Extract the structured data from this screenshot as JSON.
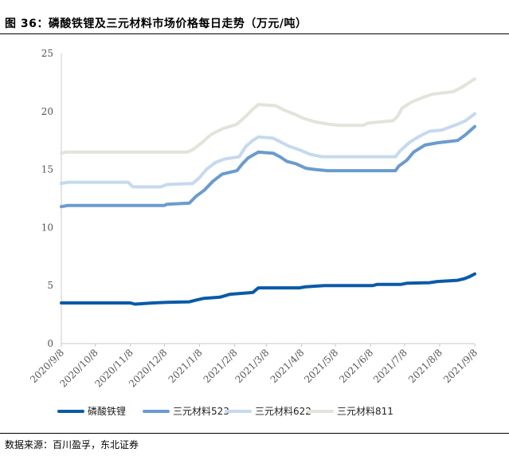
{
  "figure": {
    "title": "图 36：磷酸铁锂及三元材料市场价格每日走势（万元/吨）",
    "source": "数据来源：百川盈孚，东北证券"
  },
  "chart_data": {
    "type": "line",
    "title": "图 36：磷酸铁锂及三元材料市场价格每日走势（万元/吨）",
    "unit": "万元/吨",
    "xlabel": "",
    "ylabel": "",
    "ylim": [
      0,
      25
    ],
    "yticks": [
      0,
      5,
      10,
      15,
      20,
      25
    ],
    "x_tick_labels": [
      "2020/9/8",
      "2020/10/8",
      "2020/11/8",
      "2020/12/8",
      "2021/1/8",
      "2021/2/8",
      "2021/3/8",
      "2021/4/8",
      "2021/5/8",
      "2021/6/8",
      "2021/7/8",
      "2021/8/8",
      "2021/9/8"
    ],
    "x_start": "2020/9/8",
    "x_end": "2021/9/8",
    "grid": false,
    "legend_position": "bottom",
    "series": [
      {
        "name": "磷酸铁锂",
        "color": "#0b5aa8",
        "points": [
          [
            "2020/9/8",
            3.5
          ],
          [
            "2020/11/8",
            3.5
          ],
          [
            "2020/11/12",
            3.4
          ],
          [
            "2020/11/28",
            3.5
          ],
          [
            "2020/12/10",
            3.55
          ],
          [
            "2020/12/30",
            3.6
          ],
          [
            "2021/1/5",
            3.75
          ],
          [
            "2021/1/12",
            3.9
          ],
          [
            "2021/1/26",
            4.0
          ],
          [
            "2021/2/4",
            4.25
          ],
          [
            "2021/2/24",
            4.4
          ],
          [
            "2021/3/1",
            4.8
          ],
          [
            "2021/4/6",
            4.8
          ],
          [
            "2021/4/12",
            4.9
          ],
          [
            "2021/4/28",
            5.0
          ],
          [
            "2021/6/10",
            5.0
          ],
          [
            "2021/6/14",
            5.1
          ],
          [
            "2021/7/5",
            5.1
          ],
          [
            "2021/7/10",
            5.2
          ],
          [
            "2021/7/30",
            5.25
          ],
          [
            "2021/8/6",
            5.35
          ],
          [
            "2021/8/24",
            5.45
          ],
          [
            "2021/8/30",
            5.6
          ],
          [
            "2021/9/3",
            5.75
          ],
          [
            "2021/9/8",
            6.0
          ]
        ]
      },
      {
        "name": "三元材料523",
        "color": "#6a9bcf",
        "points": [
          [
            "2020/9/8",
            11.8
          ],
          [
            "2020/9/14",
            11.9
          ],
          [
            "2020/12/8",
            11.9
          ],
          [
            "2020/12/10",
            12.0
          ],
          [
            "2020/12/30",
            12.1
          ],
          [
            "2021/1/5",
            12.7
          ],
          [
            "2021/1/12",
            13.2
          ],
          [
            "2021/1/20",
            14.0
          ],
          [
            "2021/1/28",
            14.6
          ],
          [
            "2021/2/10",
            14.9
          ],
          [
            "2021/2/15",
            15.5
          ],
          [
            "2021/2/20",
            16.0
          ],
          [
            "2021/3/1",
            16.5
          ],
          [
            "2021/3/14",
            16.4
          ],
          [
            "2021/3/20",
            16.1
          ],
          [
            "2021/3/26",
            15.7
          ],
          [
            "2021/4/3",
            15.5
          ],
          [
            "2021/4/12",
            15.1
          ],
          [
            "2021/4/20",
            15.0
          ],
          [
            "2021/5/1",
            14.9
          ],
          [
            "2021/6/30",
            14.9
          ],
          [
            "2021/7/3",
            15.3
          ],
          [
            "2021/7/10",
            15.8
          ],
          [
            "2021/7/16",
            16.5
          ],
          [
            "2021/7/26",
            17.1
          ],
          [
            "2021/8/6",
            17.3
          ],
          [
            "2021/8/24",
            17.5
          ],
          [
            "2021/8/31",
            18.0
          ],
          [
            "2021/9/8",
            18.7
          ]
        ]
      },
      {
        "name": "三元材料622",
        "color": "#c6d9ee",
        "points": [
          [
            "2020/9/8",
            13.8
          ],
          [
            "2020/9/14",
            13.9
          ],
          [
            "2020/11/6",
            13.9
          ],
          [
            "2020/11/10",
            13.5
          ],
          [
            "2020/12/5",
            13.5
          ],
          [
            "2020/12/10",
            13.7
          ],
          [
            "2021/1/2",
            13.8
          ],
          [
            "2021/1/8",
            14.3
          ],
          [
            "2021/1/14",
            15.0
          ],
          [
            "2021/1/22",
            15.6
          ],
          [
            "2021/1/30",
            15.9
          ],
          [
            "2021/2/12",
            16.1
          ],
          [
            "2021/2/18",
            17.0
          ],
          [
            "2021/2/24",
            17.5
          ],
          [
            "2021/3/1",
            17.8
          ],
          [
            "2021/3/14",
            17.7
          ],
          [
            "2021/3/20",
            17.4
          ],
          [
            "2021/3/28",
            17.0
          ],
          [
            "2021/4/6",
            16.7
          ],
          [
            "2021/4/16",
            16.3
          ],
          [
            "2021/4/26",
            16.1
          ],
          [
            "2021/6/30",
            16.1
          ],
          [
            "2021/7/4",
            16.6
          ],
          [
            "2021/7/12",
            17.3
          ],
          [
            "2021/7/20",
            17.8
          ],
          [
            "2021/7/30",
            18.3
          ],
          [
            "2021/8/10",
            18.4
          ],
          [
            "2021/8/24",
            18.9
          ],
          [
            "2021/8/31",
            19.2
          ],
          [
            "2021/9/8",
            19.8
          ]
        ]
      },
      {
        "name": "三元材料811",
        "color": "#e4e3da",
        "points": [
          [
            "2020/9/8",
            16.4
          ],
          [
            "2020/9/12",
            16.5
          ],
          [
            "2020/12/28",
            16.5
          ],
          [
            "2021/1/2",
            16.7
          ],
          [
            "2021/1/10",
            17.3
          ],
          [
            "2021/1/18",
            18.0
          ],
          [
            "2021/1/28",
            18.5
          ],
          [
            "2021/2/10",
            18.9
          ],
          [
            "2021/2/18",
            19.6
          ],
          [
            "2021/2/24",
            20.2
          ],
          [
            "2021/3/1",
            20.6
          ],
          [
            "2021/3/16",
            20.5
          ],
          [
            "2021/3/24",
            20.1
          ],
          [
            "2021/4/1",
            19.8
          ],
          [
            "2021/4/10",
            19.4
          ],
          [
            "2021/4/20",
            19.1
          ],
          [
            "2021/5/2",
            18.9
          ],
          [
            "2021/5/12",
            18.8
          ],
          [
            "2021/6/1",
            18.8
          ],
          [
            "2021/6/6",
            19.0
          ],
          [
            "2021/6/28",
            19.2
          ],
          [
            "2021/7/2",
            19.6
          ],
          [
            "2021/7/6",
            20.3
          ],
          [
            "2021/7/14",
            20.8
          ],
          [
            "2021/7/24",
            21.2
          ],
          [
            "2021/8/2",
            21.5
          ],
          [
            "2021/8/20",
            21.7
          ],
          [
            "2021/8/28",
            22.1
          ],
          [
            "2021/9/3",
            22.5
          ],
          [
            "2021/9/8",
            22.8
          ]
        ]
      }
    ]
  }
}
